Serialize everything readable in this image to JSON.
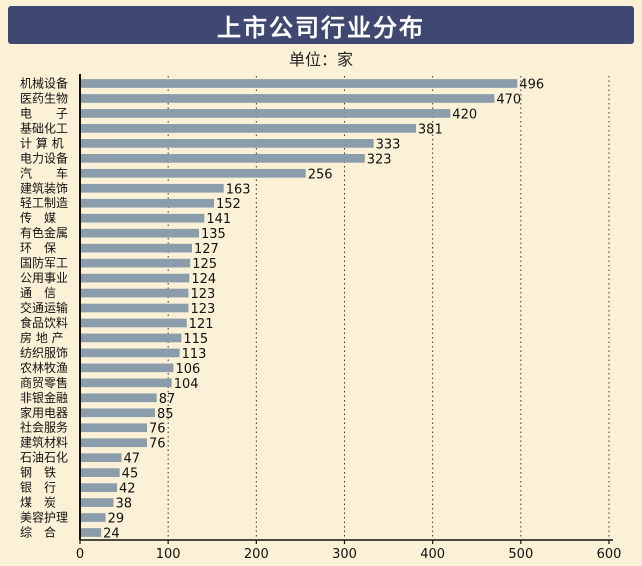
{
  "header": {
    "title": "上市公司行业分布",
    "unit": "单位：家"
  },
  "chart_data": {
    "type": "bar",
    "orientation": "horizontal",
    "title": "上市公司行业分布",
    "unit": "单位：家",
    "categories": [
      "机械设备",
      "医药生物",
      "电　　子",
      "基础化工",
      "计 算 机",
      "电力设备",
      "汽　　车",
      "建筑装饰",
      "轻工制造",
      "传　媒",
      "有色金属",
      "环　保",
      "国防军工",
      "公用事业",
      "通　信",
      "交通运输",
      "食品饮料",
      "房 地 产",
      "纺织服饰",
      "农林牧渔",
      "商贸零售",
      "非银金融",
      "家用电器",
      "社会服务",
      "建筑材料",
      "石油石化",
      "钢　铁",
      "银　行",
      "煤　炭",
      "美容护理",
      "综　合"
    ],
    "values": [
      496,
      470,
      420,
      381,
      333,
      323,
      256,
      163,
      152,
      141,
      135,
      127,
      125,
      124,
      123,
      123,
      121,
      115,
      113,
      106,
      104,
      87,
      85,
      76,
      76,
      47,
      45,
      42,
      38,
      29,
      24
    ],
    "xlim": [
      0,
      600
    ],
    "xticks": [
      0,
      100,
      200,
      300,
      400,
      500,
      600
    ],
    "grid": "vertical dotted",
    "colors": {
      "bar": "#8b9cab",
      "title_bg": "#3f4871",
      "background": "#fbf1d6"
    }
  }
}
